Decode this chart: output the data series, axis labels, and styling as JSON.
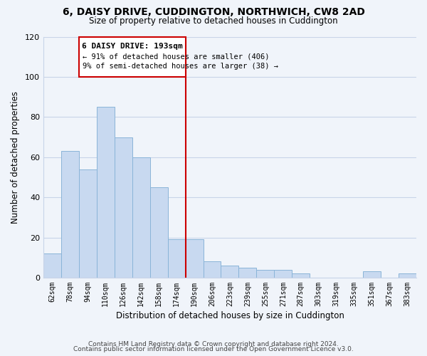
{
  "title": "6, DAISY DRIVE, CUDDINGTON, NORTHWICH, CW8 2AD",
  "subtitle": "Size of property relative to detached houses in Cuddington",
  "xlabel": "Distribution of detached houses by size in Cuddington",
  "ylabel": "Number of detached properties",
  "bar_labels": [
    "62sqm",
    "78sqm",
    "94sqm",
    "110sqm",
    "126sqm",
    "142sqm",
    "158sqm",
    "174sqm",
    "190sqm",
    "206sqm",
    "223sqm",
    "239sqm",
    "255sqm",
    "271sqm",
    "287sqm",
    "303sqm",
    "319sqm",
    "335sqm",
    "351sqm",
    "367sqm",
    "383sqm"
  ],
  "bar_values": [
    12,
    63,
    54,
    85,
    70,
    60,
    45,
    19,
    19,
    8,
    6,
    5,
    4,
    4,
    2,
    0,
    0,
    0,
    3,
    0,
    2
  ],
  "bar_color": "#c8d9f0",
  "bar_edgecolor": "#8ab4d8",
  "vline_index": 8,
  "vline_color": "#cc0000",
  "annotation_title": "6 DAISY DRIVE: 193sqm",
  "annotation_line1": "← 91% of detached houses are smaller (406)",
  "annotation_line2": "9% of semi-detached houses are larger (38) →",
  "annotation_box_edgecolor": "#cc0000",
  "ylim": [
    0,
    120
  ],
  "yticks": [
    0,
    20,
    40,
    60,
    80,
    100,
    120
  ],
  "footer1": "Contains HM Land Registry data © Crown copyright and database right 2024.",
  "footer2": "Contains public sector information licensed under the Open Government Licence v3.0.",
  "bg_color": "#f0f4fa",
  "grid_color": "#c8d4e8"
}
